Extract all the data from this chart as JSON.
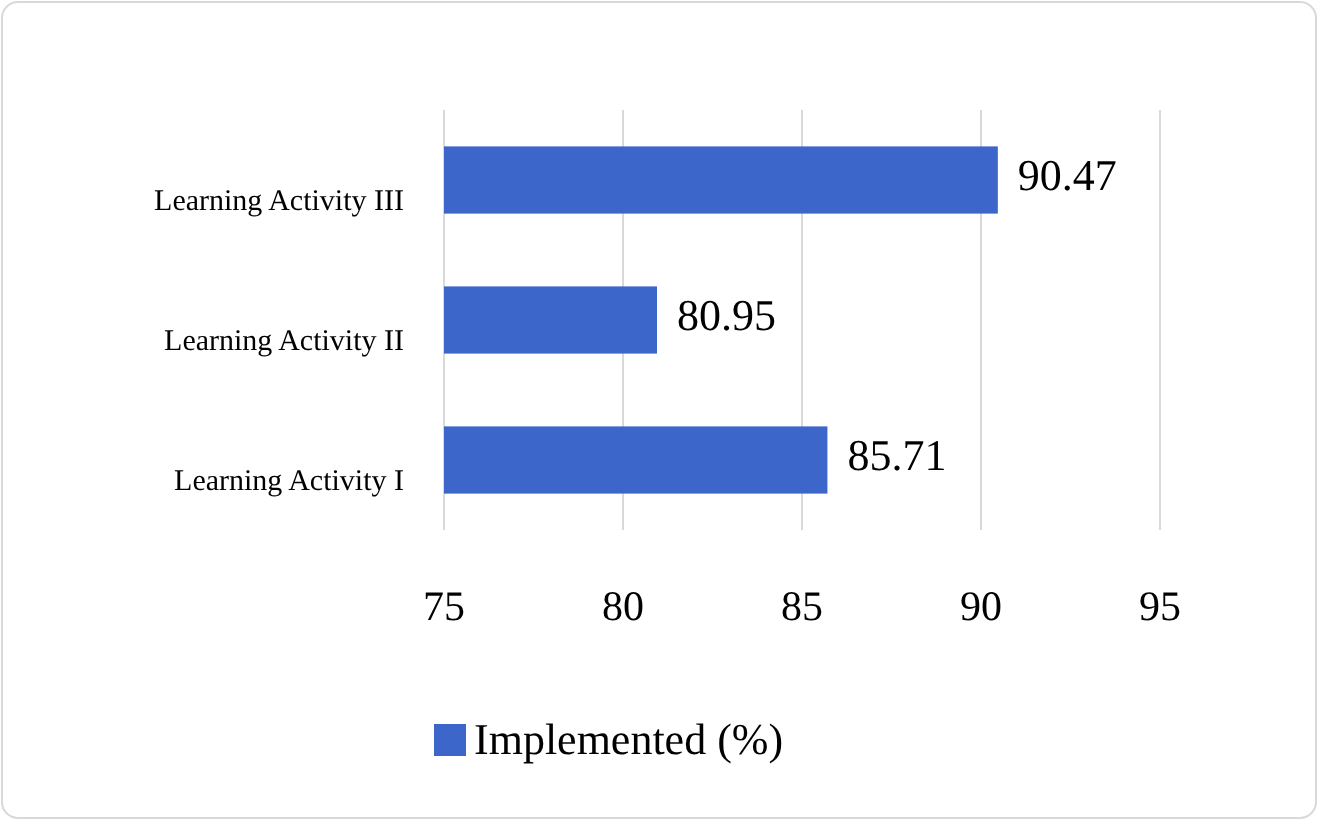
{
  "chart_data": {
    "type": "bar",
    "orientation": "horizontal",
    "categories": [
      "Learning Activity III",
      "Learning Activity II",
      "Learning Activity I"
    ],
    "series": [
      {
        "name": "Implemented (%)",
        "color": "#3c66c9",
        "values": [
          90.47,
          80.95,
          85.71
        ]
      }
    ],
    "xlim": [
      75,
      95
    ],
    "xticks": [
      75,
      80,
      85,
      90,
      95
    ],
    "grid": "x",
    "legend": "bottom",
    "data_labels": true
  }
}
